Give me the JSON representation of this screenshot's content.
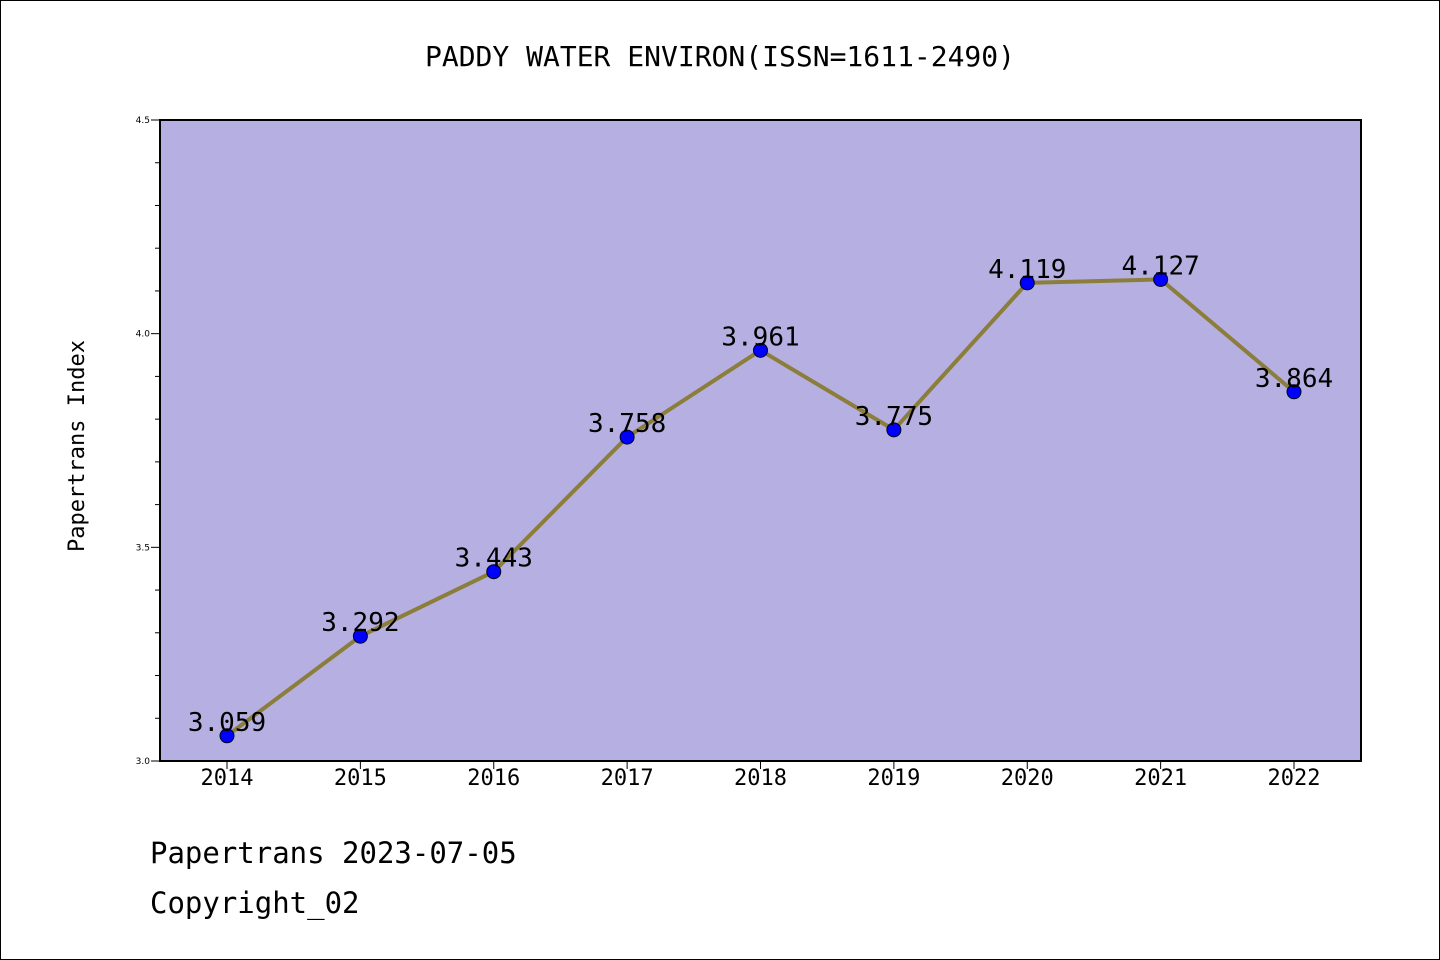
{
  "chart_data": {
    "type": "line",
    "title": "PADDY WATER ENVIRON(ISSN=1611-2490)",
    "xlabel": "",
    "ylabel": "Papertrans Index",
    "categories": [
      "2014",
      "2015",
      "2016",
      "2017",
      "2018",
      "2019",
      "2020",
      "2021",
      "2022"
    ],
    "series": [
      {
        "values": [
          3.059,
          3.292,
          3.443,
          3.758,
          3.961,
          3.775,
          4.119,
          4.127,
          3.864
        ],
        "labels": [
          "3.059",
          "3.292",
          "3.443",
          "3.758",
          "3.961",
          "3.775",
          "4.119",
          "4.127",
          "3.864"
        ]
      }
    ],
    "ylim": [
      3.0,
      4.5
    ],
    "yticks": [
      "3.0",
      "3.5",
      "4.0",
      "4.5"
    ],
    "grid": false,
    "colors": {
      "plot_background": "#b5b0e1",
      "line": "#8b7d3a",
      "marker": "#0000ff",
      "axes": "#000000"
    }
  },
  "footer": {
    "line1": "Papertrans 2023-07-05",
    "line2": "Copyright_02"
  }
}
